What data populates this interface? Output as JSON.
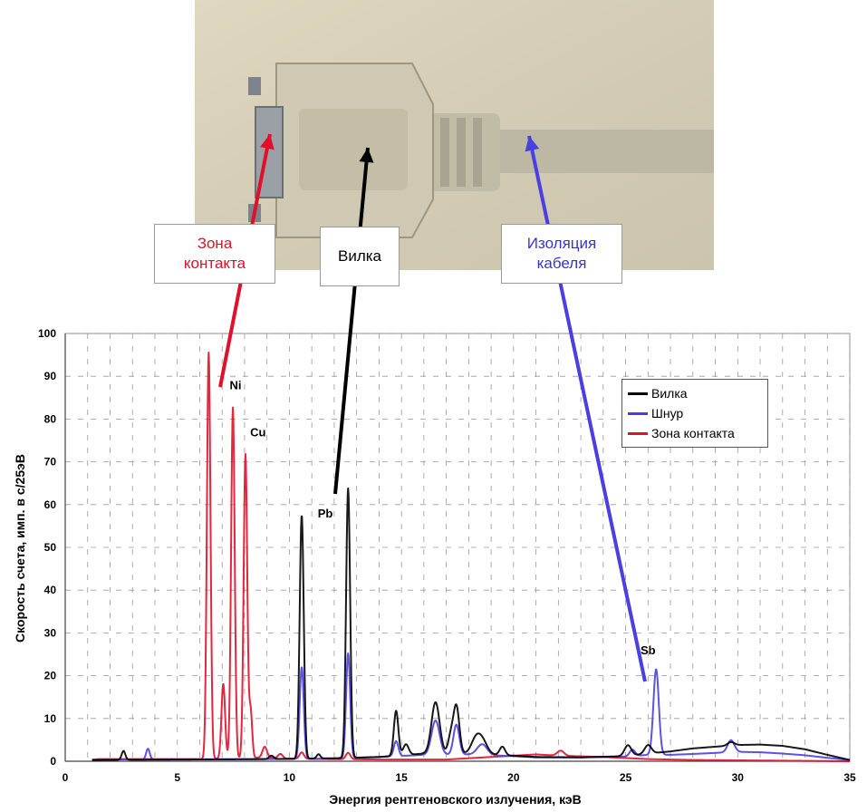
{
  "callouts": {
    "contact": "Зона\nконтакта",
    "plug": "Вилка",
    "insulation": "Изоляция\nкабеля"
  },
  "colors": {
    "plug": "#000000",
    "cord": "#4a3fe0",
    "contact": "#e0102a"
  },
  "chart_data": {
    "type": "line",
    "xlabel": "Энергия рентгеновского излучения, кэВ",
    "ylabel": "Скорость счета, имп. в с/25эВ",
    "xlim": [
      0,
      35
    ],
    "ylim": [
      0,
      100
    ],
    "x_ticks": [
      0,
      5,
      10,
      15,
      20,
      25,
      30,
      35
    ],
    "y_ticks": [
      0,
      10,
      20,
      30,
      40,
      50,
      60,
      70,
      80,
      90,
      100
    ],
    "grid": "dashed",
    "legend_position": "top-right",
    "annotations": [
      {
        "text": "Ni",
        "x": 7.6,
        "y": 87
      },
      {
        "text": "Cu",
        "x": 8.6,
        "y": 76
      },
      {
        "text": "Pb",
        "x": 11.6,
        "y": 57
      },
      {
        "text": "Sb",
        "x": 26.0,
        "y": 25
      }
    ],
    "series": [
      {
        "name": "Вилка",
        "color": "#000000",
        "background": [
          [
            0,
            0
          ],
          [
            1.5,
            0.3
          ],
          [
            9,
            0.5
          ],
          [
            12,
            0.7
          ],
          [
            14,
            1
          ],
          [
            16,
            1.8
          ],
          [
            18,
            1.8
          ],
          [
            20,
            1.3
          ],
          [
            21,
            1
          ],
          [
            23,
            0.9
          ],
          [
            25,
            1.2
          ],
          [
            26,
            1.8
          ],
          [
            27,
            2.3
          ],
          [
            28,
            3
          ],
          [
            30,
            3.8
          ],
          [
            31,
            3.9
          ],
          [
            32,
            3.6
          ],
          [
            33,
            2.8
          ],
          [
            34,
            1.5
          ],
          [
            35,
            0.3
          ]
        ],
        "peaks": [
          [
            2.6,
            2.1,
            0.08
          ],
          [
            9.2,
            0.8,
            0.1
          ],
          [
            10.55,
            57,
            0.09
          ],
          [
            11.3,
            1,
            0.08
          ],
          [
            12.62,
            63,
            0.09
          ],
          [
            14.76,
            10.5,
            0.1
          ],
          [
            15.2,
            2.5,
            0.12
          ],
          [
            16.52,
            12,
            0.18
          ],
          [
            17.2,
            4,
            0.12
          ],
          [
            17.45,
            11,
            0.13
          ],
          [
            18.3,
            3,
            0.2
          ],
          [
            18.6,
            3.2,
            0.22
          ],
          [
            19.5,
            2,
            0.12
          ],
          [
            25.1,
            2.5,
            0.15
          ],
          [
            26.0,
            2,
            0.15
          ],
          [
            29.7,
            0.8,
            0.15
          ]
        ]
      },
      {
        "name": "Шнур",
        "color": "#4a3fe0",
        "background": [
          [
            0,
            0
          ],
          [
            1.5,
            0.4
          ],
          [
            9,
            0.5
          ],
          [
            12,
            0.6
          ],
          [
            14,
            1
          ],
          [
            16,
            1.5
          ],
          [
            18,
            1.6
          ],
          [
            20,
            1.2
          ],
          [
            21,
            0.9
          ],
          [
            23,
            0.9
          ],
          [
            25,
            1.1
          ],
          [
            26,
            1.5
          ],
          [
            27,
            1.5
          ],
          [
            28,
            1.7
          ],
          [
            30,
            2.2
          ],
          [
            31,
            2.1
          ],
          [
            32,
            1.8
          ],
          [
            33,
            1.4
          ],
          [
            34,
            0.8
          ],
          [
            35,
            0.3
          ]
        ],
        "peaks": [
          [
            3.69,
            2.5,
            0.08
          ],
          [
            10.55,
            21.5,
            0.09
          ],
          [
            12.62,
            24.5,
            0.09
          ],
          [
            14.76,
            3.5,
            0.1
          ],
          [
            16.52,
            8,
            0.18
          ],
          [
            17.45,
            7,
            0.13
          ],
          [
            18.6,
            2.5,
            0.22
          ],
          [
            25.3,
            1.5,
            0.12
          ],
          [
            26.36,
            20,
            0.12
          ],
          [
            29.7,
            2.8,
            0.15
          ]
        ]
      },
      {
        "name": "Зона контакта",
        "color": "#e0102a",
        "background": [
          [
            0,
            0
          ],
          [
            1.5,
            0.5
          ],
          [
            5,
            0.5
          ],
          [
            6,
            0.5
          ],
          [
            9,
            0.9
          ],
          [
            10,
            0.6
          ],
          [
            12,
            0.5
          ],
          [
            14,
            0.4
          ],
          [
            17,
            0.4
          ],
          [
            19,
            1
          ],
          [
            21,
            1.6
          ],
          [
            22,
            1.3
          ],
          [
            24,
            1
          ],
          [
            26,
            0.5
          ],
          [
            28,
            0.3
          ],
          [
            35,
            0
          ]
        ],
        "peaks": [
          [
            6.4,
            95,
            0.08
          ],
          [
            7.05,
            17.5,
            0.08
          ],
          [
            7.48,
            82,
            0.08
          ],
          [
            8.04,
            71,
            0.08
          ],
          [
            8.27,
            11,
            0.07
          ],
          [
            8.9,
            2.5,
            0.1
          ],
          [
            9.6,
            1,
            0.1
          ],
          [
            10.55,
            1.5,
            0.1
          ],
          [
            12.62,
            1.5,
            0.1
          ],
          [
            22.1,
            1.2,
            0.15
          ]
        ]
      }
    ]
  }
}
